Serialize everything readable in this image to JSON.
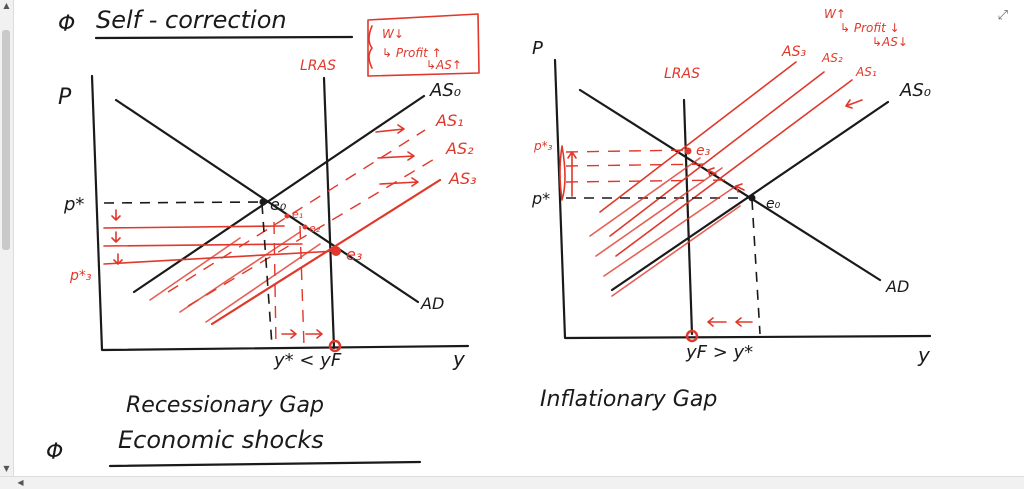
{
  "header": {
    "bullet_1": "Φ",
    "title": "Self - correction",
    "note_w": "W↓",
    "note_profit": "↳ Profit ↑",
    "note_as": "↳AS↑"
  },
  "left_graph": {
    "y_axis": "P",
    "x_axis": "y",
    "lras": "LRAS",
    "curves": [
      "AS₀",
      "AS₁",
      "AS₂",
      "AS₃"
    ],
    "ad": "AD",
    "p_star": "p*",
    "p3_star": "p*₃",
    "e0": "e₀",
    "e1": "e₁",
    "e2": "e₂",
    "e3": "e₃",
    "x_compare": "y* < yF",
    "caption": "Recessionary Gap"
  },
  "right_graph": {
    "y_axis": "P",
    "x_axis": "y",
    "lras": "LRAS",
    "curves": [
      "AS₃",
      "AS₂",
      "AS₁",
      "AS₀"
    ],
    "ad": "AD",
    "p_star": "p*",
    "p3_star": "p*₃",
    "e0": "e₀",
    "e3": "e₃",
    "x_compare": "yF > y*",
    "note_w": "W↑",
    "note_profit": "↳ Profit ↓",
    "note_as": "↳AS↓",
    "caption": "Inflationary Gap"
  },
  "footer": {
    "bullet_2": "Φ",
    "heading": "Economic shocks"
  },
  "ui": {
    "expand_icon": "⤢",
    "scroll_up": "▲",
    "scroll_down": "▼",
    "scroll_left": "◀"
  }
}
